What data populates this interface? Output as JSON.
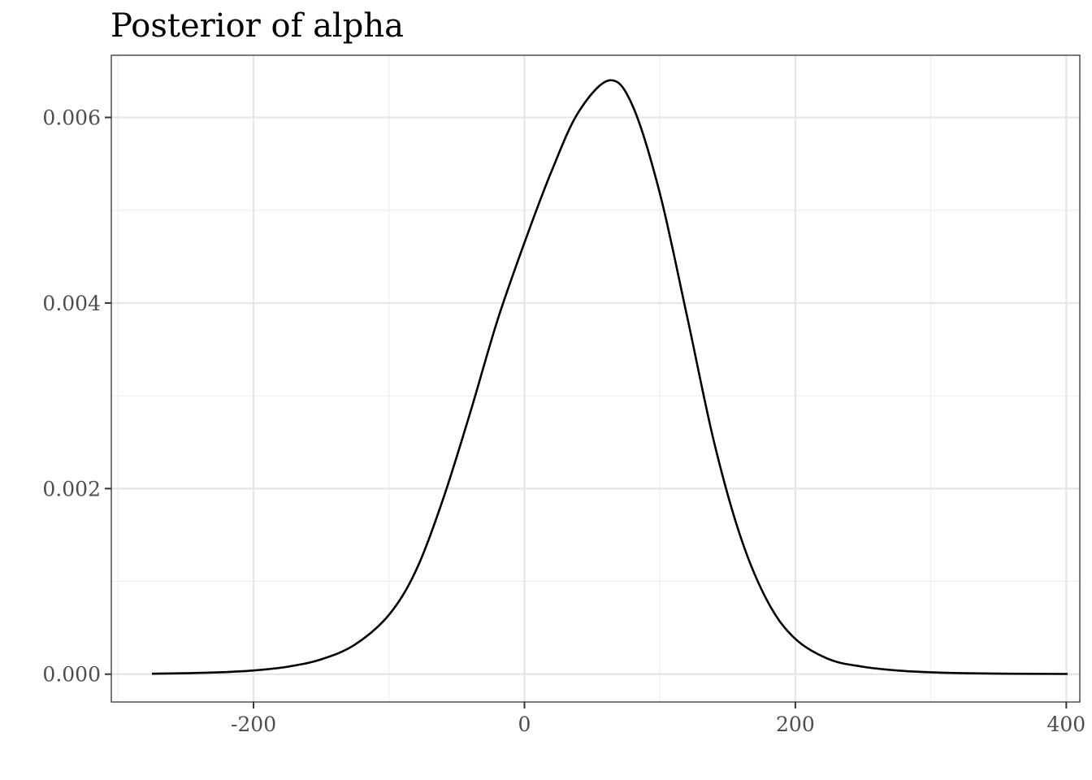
{
  "chart_data": {
    "type": "line",
    "title": "Posterior of alpha",
    "xlabel": "",
    "ylabel": "",
    "xlim": [
      -305,
      410
    ],
    "ylim": [
      -0.0003,
      0.00667
    ],
    "x_ticks": [
      -200,
      0,
      200,
      400
    ],
    "x_tick_labels": [
      "-200",
      "0",
      "200",
      "400"
    ],
    "y_ticks": [
      0,
      0.002,
      0.004,
      0.006
    ],
    "y_tick_labels": [
      "0.000",
      "0.002",
      "0.004",
      "0.006"
    ],
    "grid": true,
    "legend": "none",
    "colors": {
      "line": "#000000",
      "grid": "#e6e6e6",
      "panel_border": "#333333",
      "tick_label": "#4d4d4d"
    },
    "series": [
      {
        "x": [
          -275,
          -250,
          -225,
          -200,
          -175,
          -150,
          -125,
          -100,
          -80,
          -60,
          -40,
          -20,
          0,
          20,
          40,
          63,
          80,
          100,
          120,
          140,
          160,
          180,
          200,
          225,
          250,
          275,
          300,
          325,
          350,
          375,
          401
        ],
        "y": [
          5e-06,
          1e-05,
          2e-05,
          4e-05,
          8e-05,
          0.00016,
          0.00032,
          0.00064,
          0.00112,
          0.00189,
          0.00282,
          0.00381,
          0.00465,
          0.00542,
          0.00606,
          0.0064,
          0.00612,
          0.00518,
          0.00386,
          0.0025,
          0.00146,
          0.00077,
          0.00038,
          0.00016,
          8e-05,
          4e-05,
          2e-05,
          1e-05,
          6e-06,
          4e-06,
          2e-06
        ]
      }
    ]
  }
}
